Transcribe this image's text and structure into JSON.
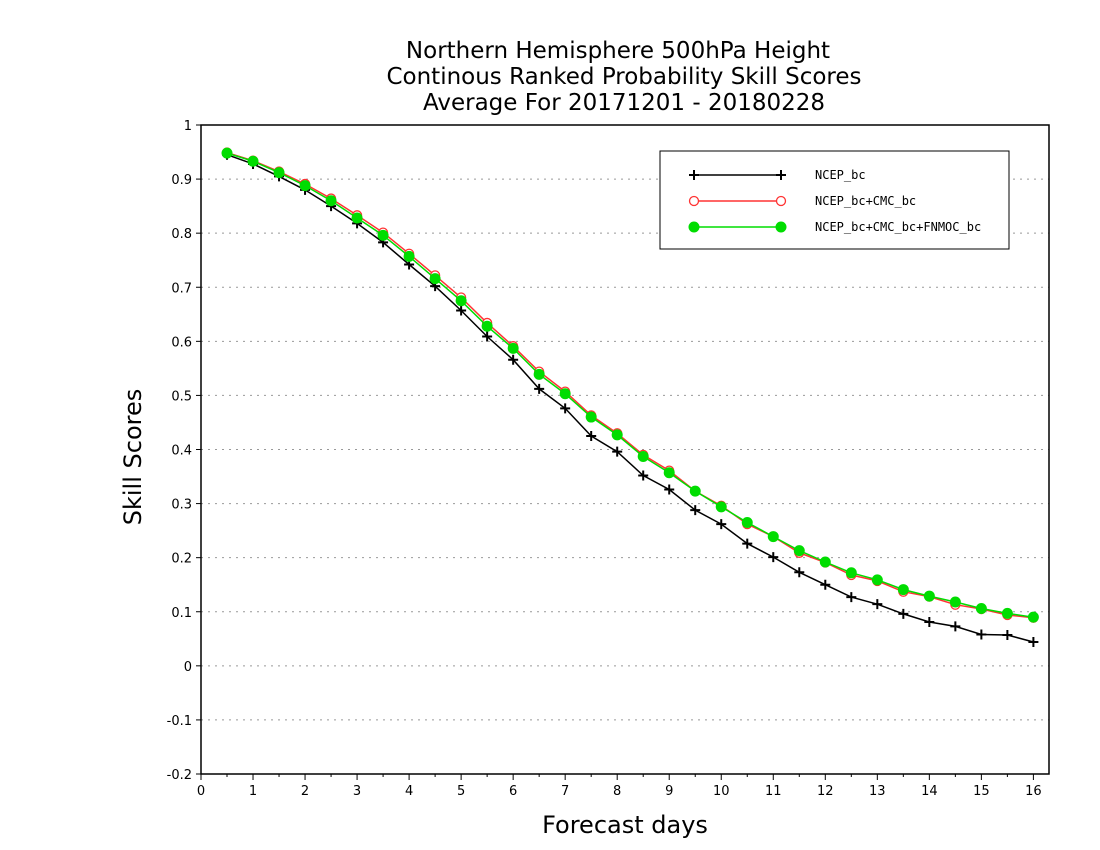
{
  "chart_data": {
    "type": "line",
    "title": [
      "Northern Hemisphere 500hPa Height",
      "Continous Ranked Probability Skill Scores",
      "Average For 20171201 - 20180228"
    ],
    "xlabel": "Forecast days",
    "ylabel": "Skill Scores",
    "xlim": [
      0,
      16.3
    ],
    "ylim": [
      -0.2,
      1
    ],
    "xticks": [
      "0",
      "1",
      "2",
      "3",
      "4",
      "5",
      "6",
      "7",
      "8",
      "9",
      "10",
      "11",
      "12",
      "13",
      "14",
      "15",
      "16"
    ],
    "yticks": [
      "-0.2",
      "-0.1",
      "0",
      "0.1",
      "0.2",
      "0.3",
      "0.4",
      "0.5",
      "0.6",
      "0.7",
      "0.8",
      "0.9",
      "1"
    ],
    "grid": "horizontal dotted",
    "legend_position": "top-right",
    "x": [
      0.5,
      1,
      1.5,
      2,
      2.5,
      3,
      3.5,
      4,
      4.5,
      5,
      5.5,
      6,
      6.5,
      7,
      7.5,
      8,
      8.5,
      9,
      9.5,
      10,
      10.5,
      11,
      11.5,
      12,
      12.5,
      13,
      13.5,
      14,
      14.5,
      15,
      15.5,
      16
    ],
    "series": [
      {
        "name": "NCEP_bc",
        "color": "#000000",
        "marker": "plus",
        "values": [
          0.945,
          0.928,
          0.905,
          0.88,
          0.85,
          0.818,
          0.783,
          0.742,
          0.702,
          0.657,
          0.609,
          0.566,
          0.512,
          0.476,
          0.425,
          0.396,
          0.352,
          0.326,
          0.288,
          0.262,
          0.226,
          0.201,
          0.173,
          0.15,
          0.127,
          0.114,
          0.096,
          0.081,
          0.073,
          0.058,
          0.057,
          0.044
        ]
      },
      {
        "name": "NCEP_bc+CMC_bc",
        "color": "#ff3333",
        "marker": "open-circle",
        "values": [
          0.949,
          0.934,
          0.914,
          0.891,
          0.864,
          0.833,
          0.801,
          0.762,
          0.722,
          0.681,
          0.634,
          0.591,
          0.544,
          0.507,
          0.463,
          0.43,
          0.39,
          0.361,
          0.323,
          0.296,
          0.262,
          0.239,
          0.209,
          0.191,
          0.168,
          0.157,
          0.137,
          0.128,
          0.113,
          0.105,
          0.094,
          0.089
        ]
      },
      {
        "name": "NCEP_bc+CMC_bc+FNMOC_bc",
        "color": "#00dd00",
        "marker": "filled-circle",
        "values": [
          0.948,
          0.933,
          0.912,
          0.888,
          0.86,
          0.828,
          0.796,
          0.757,
          0.716,
          0.675,
          0.628,
          0.587,
          0.539,
          0.503,
          0.46,
          0.427,
          0.387,
          0.357,
          0.323,
          0.294,
          0.265,
          0.239,
          0.213,
          0.192,
          0.172,
          0.159,
          0.141,
          0.129,
          0.118,
          0.106,
          0.097,
          0.09
        ]
      }
    ]
  }
}
